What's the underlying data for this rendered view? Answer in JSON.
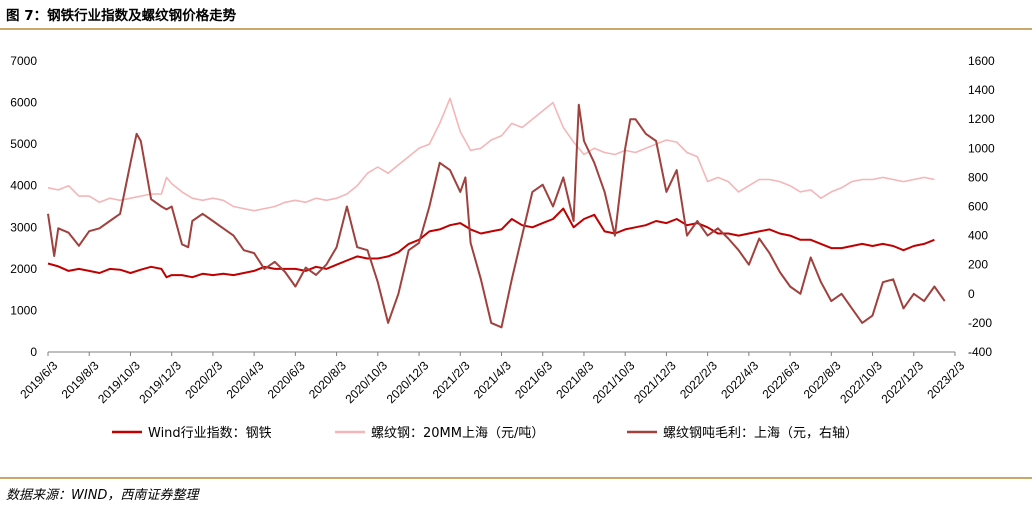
{
  "figure": {
    "title": "图 7：钢铁行业指数及螺纹钢价格走势",
    "source": "数据来源：WIND，西南证券整理"
  },
  "chart_data": {
    "type": "line",
    "title": "图 7：钢铁行业指数及螺纹钢价格走势",
    "x_tick_labels": [
      "2019/6/3",
      "2019/8/3",
      "2019/10/3",
      "2019/12/3",
      "2020/2/3",
      "2020/4/3",
      "2020/6/3",
      "2020/8/3",
      "2020/10/3",
      "2020/12/3",
      "2021/2/3",
      "2021/4/3",
      "2021/6/3",
      "2021/8/3",
      "2021/10/3",
      "2021/12/3",
      "2022/2/3",
      "2022/4/3",
      "2022/6/3",
      "2022/8/3",
      "2022/10/3",
      "2022/12/3",
      "2023/2/3"
    ],
    "y_left": {
      "min": 0,
      "max": 7000,
      "step": 1000,
      "ticks": [
        "0",
        "1000",
        "2000",
        "3000",
        "4000",
        "5000",
        "6000",
        "7000"
      ]
    },
    "y_right": {
      "min": -400,
      "max": 1600,
      "step": 200,
      "ticks": [
        "-400",
        "-200",
        "0",
        "200",
        "400",
        "600",
        "800",
        "1000",
        "1200",
        "1400",
        "1600"
      ]
    },
    "grid": false,
    "legend_position": "bottom",
    "series": [
      {
        "name": "Wind行业指数：钢铁",
        "axis": "left",
        "color": "#c00000",
        "points": [
          [
            0,
            2130
          ],
          [
            1,
            2060
          ],
          [
            2,
            1950
          ],
          [
            3,
            2000
          ],
          [
            4,
            1950
          ],
          [
            5,
            1900
          ],
          [
            6,
            2000
          ],
          [
            7,
            1980
          ],
          [
            8,
            1900
          ],
          [
            9,
            1980
          ],
          [
            10,
            2050
          ],
          [
            11,
            2000
          ],
          [
            11.5,
            1800
          ],
          [
            12,
            1850
          ],
          [
            13,
            1850
          ],
          [
            14,
            1800
          ],
          [
            15,
            1880
          ],
          [
            16,
            1850
          ],
          [
            17,
            1880
          ],
          [
            18,
            1850
          ],
          [
            19,
            1900
          ],
          [
            20,
            1950
          ],
          [
            21,
            2050
          ],
          [
            22,
            2000
          ],
          [
            23,
            2000
          ],
          [
            24,
            2000
          ],
          [
            25,
            1950
          ],
          [
            26,
            2050
          ],
          [
            27,
            2000
          ],
          [
            28,
            2100
          ],
          [
            29,
            2200
          ],
          [
            30,
            2300
          ],
          [
            31,
            2250
          ],
          [
            32,
            2250
          ],
          [
            33,
            2300
          ],
          [
            34,
            2400
          ],
          [
            35,
            2600
          ],
          [
            36,
            2700
          ],
          [
            37,
            2900
          ],
          [
            38,
            2950
          ],
          [
            39,
            3050
          ],
          [
            40,
            3100
          ],
          [
            41,
            2950
          ],
          [
            42,
            2850
          ],
          [
            43,
            2900
          ],
          [
            44,
            2950
          ],
          [
            45,
            3200
          ],
          [
            46,
            3050
          ],
          [
            47,
            3000
          ],
          [
            48,
            3100
          ],
          [
            49,
            3200
          ],
          [
            50,
            3450
          ],
          [
            51,
            3000
          ],
          [
            52,
            3200
          ],
          [
            53,
            3300
          ],
          [
            54,
            2900
          ],
          [
            55,
            2850
          ],
          [
            56,
            2950
          ],
          [
            57,
            3000
          ],
          [
            58,
            3050
          ],
          [
            59,
            3150
          ],
          [
            60,
            3100
          ],
          [
            61,
            3200
          ],
          [
            62,
            3050
          ],
          [
            63,
            3100
          ],
          [
            64,
            3000
          ],
          [
            65,
            2850
          ],
          [
            66,
            2850
          ],
          [
            67,
            2800
          ],
          [
            68,
            2850
          ],
          [
            69,
            2900
          ],
          [
            70,
            2950
          ],
          [
            71,
            2850
          ],
          [
            72,
            2800
          ],
          [
            73,
            2700
          ],
          [
            74,
            2700
          ],
          [
            75,
            2600
          ],
          [
            76,
            2500
          ],
          [
            77,
            2500
          ],
          [
            78,
            2550
          ],
          [
            79,
            2600
          ],
          [
            80,
            2550
          ],
          [
            81,
            2600
          ],
          [
            82,
            2550
          ],
          [
            83,
            2450
          ],
          [
            84,
            2550
          ],
          [
            85,
            2600
          ],
          [
            86,
            2700
          ]
        ]
      },
      {
        "name": "螺纹钢：20MM上海（元/吨）",
        "axis": "left",
        "color": "#f4b6b8",
        "points": [
          [
            0,
            3950
          ],
          [
            1,
            3900
          ],
          [
            2,
            4000
          ],
          [
            3,
            3750
          ],
          [
            4,
            3750
          ],
          [
            5,
            3600
          ],
          [
            6,
            3700
          ],
          [
            7,
            3650
          ],
          [
            8,
            3700
          ],
          [
            9,
            3750
          ],
          [
            10,
            3800
          ],
          [
            11,
            3800
          ],
          [
            11.5,
            4200
          ],
          [
            12,
            4050
          ],
          [
            13,
            3850
          ],
          [
            14,
            3700
          ],
          [
            15,
            3650
          ],
          [
            16,
            3700
          ],
          [
            17,
            3650
          ],
          [
            18,
            3500
          ],
          [
            19,
            3450
          ],
          [
            20,
            3400
          ],
          [
            21,
            3450
          ],
          [
            22,
            3500
          ],
          [
            23,
            3600
          ],
          [
            24,
            3650
          ],
          [
            25,
            3600
          ],
          [
            26,
            3700
          ],
          [
            27,
            3650
          ],
          [
            28,
            3700
          ],
          [
            29,
            3800
          ],
          [
            30,
            4000
          ],
          [
            31,
            4300
          ],
          [
            32,
            4450
          ],
          [
            33,
            4300
          ],
          [
            34,
            4500
          ],
          [
            35,
            4700
          ],
          [
            36,
            4900
          ],
          [
            37,
            5000
          ],
          [
            38,
            5500
          ],
          [
            39,
            6100
          ],
          [
            40,
            5300
          ],
          [
            41,
            4850
          ],
          [
            42,
            4900
          ],
          [
            43,
            5100
          ],
          [
            44,
            5200
          ],
          [
            45,
            5500
          ],
          [
            46,
            5400
          ],
          [
            47,
            5600
          ],
          [
            48,
            5800
          ],
          [
            49,
            6000
          ],
          [
            50,
            5400
          ],
          [
            51,
            5050
          ],
          [
            52,
            4750
          ],
          [
            53,
            4900
          ],
          [
            54,
            4800
          ],
          [
            55,
            4750
          ],
          [
            56,
            4850
          ],
          [
            57,
            4800
          ],
          [
            58,
            4900
          ],
          [
            59,
            5000
          ],
          [
            60,
            5100
          ],
          [
            61,
            5050
          ],
          [
            62,
            4800
          ],
          [
            63,
            4700
          ],
          [
            64,
            4100
          ],
          [
            65,
            4200
          ],
          [
            66,
            4100
          ],
          [
            67,
            3850
          ],
          [
            68,
            4000
          ],
          [
            69,
            4150
          ],
          [
            70,
            4150
          ],
          [
            71,
            4100
          ],
          [
            72,
            4000
          ],
          [
            73,
            3850
          ],
          [
            74,
            3900
          ],
          [
            75,
            3700
          ],
          [
            76,
            3850
          ],
          [
            77,
            3950
          ],
          [
            78,
            4100
          ],
          [
            79,
            4150
          ],
          [
            80,
            4150
          ],
          [
            81,
            4200
          ],
          [
            82,
            4150
          ],
          [
            83,
            4100
          ],
          [
            84,
            4150
          ],
          [
            85,
            4200
          ],
          [
            86,
            4150
          ]
        ]
      },
      {
        "name": "螺纹钢吨毛利：上海（元，右轴）",
        "axis": "right",
        "color": "#a0413e",
        "points": [
          [
            0,
            550
          ],
          [
            0.6,
            260
          ],
          [
            1,
            450
          ],
          [
            2,
            420
          ],
          [
            3,
            330
          ],
          [
            4,
            430
          ],
          [
            5,
            450
          ],
          [
            6,
            500
          ],
          [
            7,
            550
          ],
          [
            8,
            900
          ],
          [
            8.6,
            1100
          ],
          [
            9,
            1050
          ],
          [
            10,
            650
          ],
          [
            11,
            600
          ],
          [
            11.5,
            580
          ],
          [
            12,
            600
          ],
          [
            13,
            340
          ],
          [
            13.6,
            320
          ],
          [
            14,
            500
          ],
          [
            15,
            550
          ],
          [
            16,
            500
          ],
          [
            17,
            450
          ],
          [
            18,
            400
          ],
          [
            19,
            300
          ],
          [
            20,
            280
          ],
          [
            21,
            170
          ],
          [
            22,
            220
          ],
          [
            23,
            150
          ],
          [
            24,
            50
          ],
          [
            25,
            180
          ],
          [
            26,
            130
          ],
          [
            27,
            200
          ],
          [
            28,
            320
          ],
          [
            29,
            600
          ],
          [
            30,
            320
          ],
          [
            31,
            300
          ],
          [
            32,
            80
          ],
          [
            33,
            -200
          ],
          [
            34,
            0
          ],
          [
            35,
            300
          ],
          [
            36,
            350
          ],
          [
            37,
            600
          ],
          [
            38,
            900
          ],
          [
            39,
            850
          ],
          [
            40,
            700
          ],
          [
            40.5,
            800
          ],
          [
            41,
            350
          ],
          [
            42,
            100
          ],
          [
            43,
            -200
          ],
          [
            44,
            -230
          ],
          [
            45,
            100
          ],
          [
            46,
            400
          ],
          [
            47,
            700
          ],
          [
            48,
            750
          ],
          [
            49,
            600
          ],
          [
            50,
            800
          ],
          [
            51,
            500
          ],
          [
            51.5,
            1300
          ],
          [
            52,
            1050
          ],
          [
            53,
            900
          ],
          [
            54,
            700
          ],
          [
            55,
            400
          ],
          [
            56,
            1000
          ],
          [
            56.5,
            1200
          ],
          [
            57,
            1200
          ],
          [
            58,
            1100
          ],
          [
            59,
            1050
          ],
          [
            60,
            700
          ],
          [
            61,
            850
          ],
          [
            62,
            400
          ],
          [
            63,
            500
          ],
          [
            64,
            400
          ],
          [
            65,
            450
          ],
          [
            66,
            380
          ],
          [
            67,
            300
          ],
          [
            68,
            200
          ],
          [
            69,
            380
          ],
          [
            70,
            280
          ],
          [
            71,
            150
          ],
          [
            72,
            50
          ],
          [
            73,
            0
          ],
          [
            74,
            250
          ],
          [
            75,
            80
          ],
          [
            76,
            -50
          ],
          [
            77,
            0
          ],
          [
            78,
            -100
          ],
          [
            79,
            -200
          ],
          [
            80,
            -150
          ],
          [
            81,
            80
          ],
          [
            82,
            100
          ],
          [
            83,
            -100
          ],
          [
            84,
            0
          ],
          [
            85,
            -50
          ],
          [
            86,
            50
          ],
          [
            87,
            -50
          ]
        ]
      }
    ]
  }
}
